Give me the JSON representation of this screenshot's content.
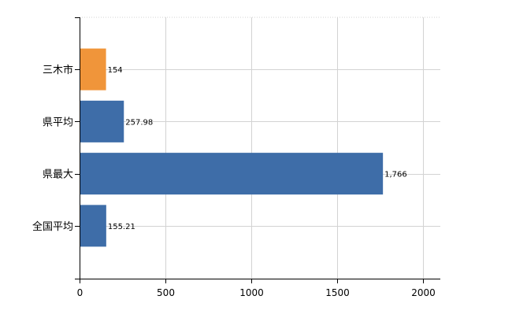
{
  "chart_data": {
    "type": "bar",
    "orientation": "horizontal",
    "categories": [
      "三木市",
      "県平均",
      "県最大",
      "全国平均"
    ],
    "values": [
      154,
      257.98,
      1766,
      155.21
    ],
    "value_labels": [
      "154",
      "257.98",
      "1,766",
      "155.21"
    ],
    "bar_colors": [
      "#f0953a",
      "#3e6da8",
      "#3e6da8",
      "#3e6da8"
    ],
    "xlim": [
      0,
      2100
    ],
    "xticks": [
      0,
      500,
      1000,
      1500,
      2000
    ],
    "xtick_labels": [
      "0",
      "500",
      "1000",
      "1500",
      "2000"
    ],
    "grid": true,
    "title": "",
    "xlabel": "",
    "ylabel": ""
  },
  "colors": {
    "highlight": "#f0953a",
    "default": "#3e6da8",
    "gridline": "#d3d3d3",
    "axis": "#000000"
  }
}
